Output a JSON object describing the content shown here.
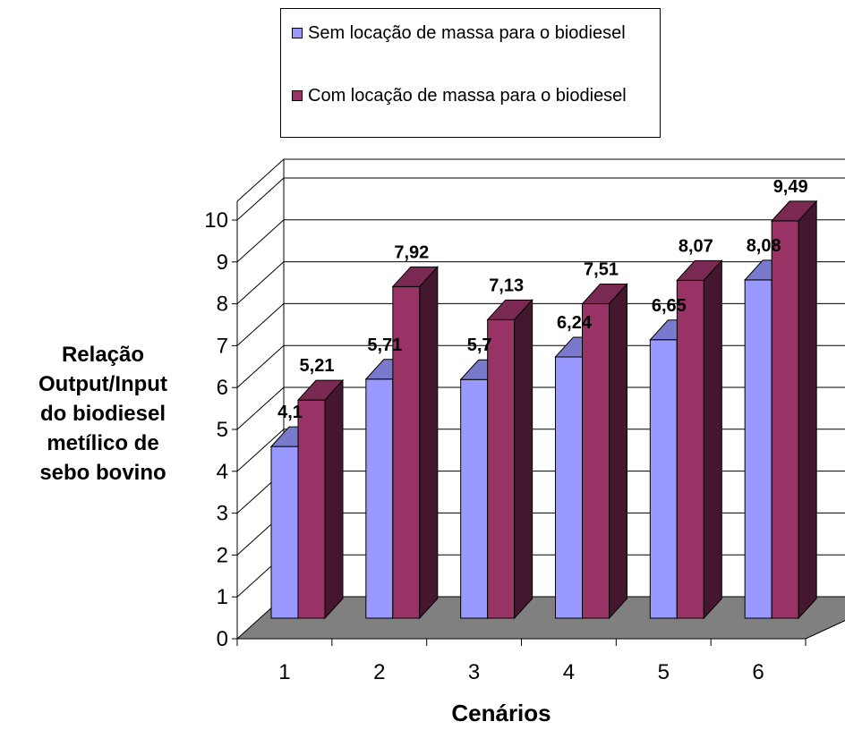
{
  "chart_data": {
    "type": "bar",
    "style": "3d-clustered-column",
    "categories": [
      "1",
      "2",
      "3",
      "4",
      "5",
      "6"
    ],
    "series": [
      {
        "name": "Sem locação de massa para o biodiesel",
        "values": [
          4.1,
          5.71,
          5.7,
          6.24,
          6.65,
          8.08
        ],
        "labels": [
          "4,1",
          "5,71",
          "5,7",
          "6,24",
          "6,65",
          "8,08"
        ],
        "color": "#9999ff"
      },
      {
        "name": "Com locação de massa para o biodiesel",
        "values": [
          5.21,
          7.92,
          7.13,
          7.51,
          8.07,
          9.49
        ],
        "labels": [
          "5,21",
          "7,92",
          "7,13",
          "7,51",
          "8,07",
          "9,49"
        ],
        "color": "#993366"
      }
    ],
    "xlabel": "Cenários",
    "ylabel": "Relação\nOutput/Input\ndo biodiesel\nmetílico de\nsebo bovino",
    "ylim": [
      0,
      10
    ],
    "yticks": [
      "0",
      "1",
      "2",
      "3",
      "4",
      "5",
      "6",
      "7",
      "8",
      "9",
      "10"
    ],
    "grid": true,
    "legend": "top",
    "floor_color": "#808080"
  }
}
